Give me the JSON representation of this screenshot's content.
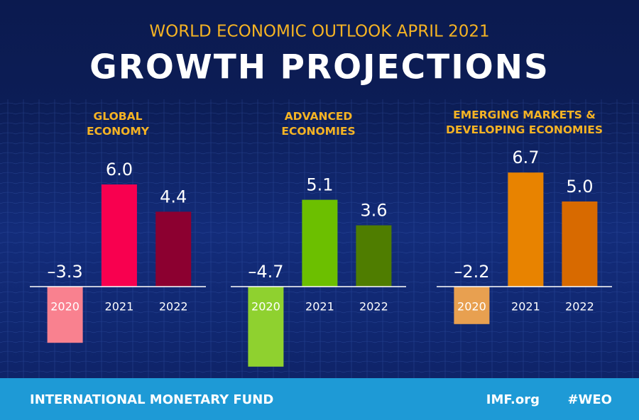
{
  "header": {
    "supertitle": "WORLD ECONOMIC OUTLOOK APRIL 2021",
    "title": "GROWTH PROJECTIONS"
  },
  "footer": {
    "organization": "INTERNATIONAL MONETARY FUND",
    "site": "IMF.org",
    "hashtag": "#WEO"
  },
  "chart_data": [
    {
      "type": "bar",
      "title": "GLOBAL ECONOMY",
      "categories": [
        "2020",
        "2021",
        "2022"
      ],
      "values": [
        -3.3,
        6.0,
        4.4
      ],
      "value_labels": [
        "–3.3",
        "6.0",
        "4.4"
      ],
      "colors": [
        "#f9818f",
        "#f8004f",
        "#8c0030"
      ],
      "ylim": [
        -5,
        7
      ]
    },
    {
      "type": "bar",
      "title": "ADVANCED ECONOMIES",
      "categories": [
        "2020",
        "2021",
        "2022"
      ],
      "values": [
        -4.7,
        5.1,
        3.6
      ],
      "value_labels": [
        "–4.7",
        "5.1",
        "3.6"
      ],
      "colors": [
        "#8fd12f",
        "#6cbf00",
        "#4f7d00"
      ],
      "ylim": [
        -5,
        7
      ]
    },
    {
      "type": "bar",
      "title": "EMERGING MARKETS & DEVELOPING ECONOMIES",
      "categories": [
        "2020",
        "2021",
        "2022"
      ],
      "values": [
        -2.2,
        6.7,
        5.0
      ],
      "value_labels": [
        "–2.2",
        "6.7",
        "5.0"
      ],
      "colors": [
        "#e8a050",
        "#e88300",
        "#d86a00"
      ],
      "ylim": [
        -5,
        7
      ]
    }
  ]
}
